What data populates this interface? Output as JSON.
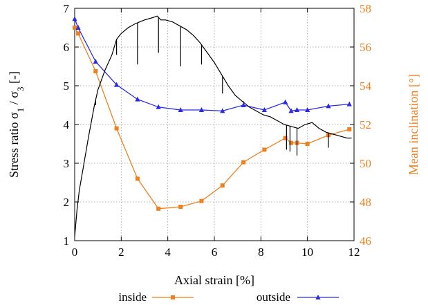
{
  "chart_data": {
    "type": "line",
    "xlabel": "Axial strain [%]",
    "ylabel_left_main": "Stress ratio σ",
    "ylabel_left_sub1": "1",
    "ylabel_left_mid": " / σ",
    "ylabel_left_sub3": "3",
    "ylabel_left_tail": " [-]",
    "ylabel_right": "Mean inclination [°]",
    "xlim": [
      0,
      12
    ],
    "ylim_left": [
      1,
      7
    ],
    "ylim_right": [
      46,
      58
    ],
    "x_ticks": [
      "0",
      "2",
      "4",
      "6",
      "8",
      "10",
      "12"
    ],
    "y_left_ticks": [
      "1",
      "2",
      "3",
      "4",
      "5",
      "6",
      "7"
    ],
    "y_right_ticks": [
      "46",
      "48",
      "50",
      "52",
      "54",
      "56",
      "58"
    ],
    "grid": true,
    "legend_position": "bottom",
    "colors": {
      "inside": "#f07f1e",
      "outside": "#2a2ae6",
      "stress": "#000000",
      "right_axis": "#f07f1e"
    },
    "series": [
      {
        "name": "inside",
        "axis": "right",
        "marker": "square",
        "x": [
          0,
          0.15,
          0.9,
          1.8,
          2.7,
          3.6,
          4.55,
          5.45,
          6.35,
          7.25,
          8.15,
          9.05,
          9.3,
          9.55,
          10.0,
          10.9,
          11.8
        ],
        "y": [
          57.0,
          56.7,
          54.75,
          51.8,
          49.2,
          47.65,
          47.75,
          48.05,
          48.85,
          50.05,
          50.7,
          51.3,
          51.05,
          51.05,
          51.0,
          51.45,
          51.75
        ]
      },
      {
        "name": "outside",
        "axis": "right",
        "marker": "triangle",
        "x": [
          0,
          0.15,
          0.9,
          1.8,
          2.7,
          3.6,
          4.55,
          5.45,
          6.35,
          7.25,
          8.15,
          9.05,
          9.3,
          9.55,
          10.0,
          10.9,
          11.8
        ],
        "y": [
          57.45,
          57.0,
          55.25,
          54.05,
          53.3,
          52.9,
          52.75,
          52.75,
          52.7,
          53.0,
          52.75,
          53.15,
          52.7,
          52.75,
          52.75,
          52.95,
          53.05
        ]
      },
      {
        "name": "",
        "axis": "left",
        "marker": "none",
        "x": [
          0,
          0.1,
          0.2,
          0.4,
          0.6,
          0.85,
          1.0,
          1.3,
          1.6,
          1.8,
          2.0,
          2.3,
          2.6,
          2.8,
          3.0,
          3.3,
          3.55,
          3.7,
          3.9,
          4.2,
          4.5,
          4.8,
          5.1,
          5.4,
          5.7,
          6.0,
          6.3,
          6.6,
          6.9,
          7.2,
          7.5,
          7.8,
          8.1,
          8.4,
          8.7,
          9.0,
          9.3,
          9.6,
          9.9,
          10.2,
          10.5,
          10.8,
          11.1,
          11.4,
          11.7,
          11.9
        ],
        "y": [
          1.1,
          1.8,
          2.3,
          3.0,
          3.7,
          4.5,
          4.9,
          5.4,
          5.8,
          6.2,
          6.35,
          6.5,
          6.6,
          6.65,
          6.7,
          6.75,
          6.8,
          6.7,
          6.7,
          6.65,
          6.55,
          6.45,
          6.3,
          6.1,
          5.85,
          5.6,
          5.3,
          5.0,
          4.75,
          4.6,
          4.45,
          4.35,
          4.25,
          4.2,
          4.1,
          4.0,
          3.95,
          3.9,
          4.0,
          4.05,
          3.9,
          3.8,
          3.75,
          3.7,
          3.65,
          3.65
        ]
      }
    ],
    "stress_drops": [
      {
        "x": 0.9,
        "to": 4.5
      },
      {
        "x": 1.8,
        "to": 5.8
      },
      {
        "x": 2.7,
        "to": 5.55
      },
      {
        "x": 3.6,
        "to": 5.85
      },
      {
        "x": 4.55,
        "to": 5.5
      },
      {
        "x": 5.45,
        "to": 5.55
      },
      {
        "x": 6.35,
        "to": 4.8
      },
      {
        "x": 7.25,
        "to": 4.6
      },
      {
        "x": 9.1,
        "to": 3.35
      },
      {
        "x": 9.55,
        "to": 3.2
      },
      {
        "x": 9.25,
        "to": 3.3
      },
      {
        "x": 10.9,
        "to": 3.4
      }
    ]
  }
}
